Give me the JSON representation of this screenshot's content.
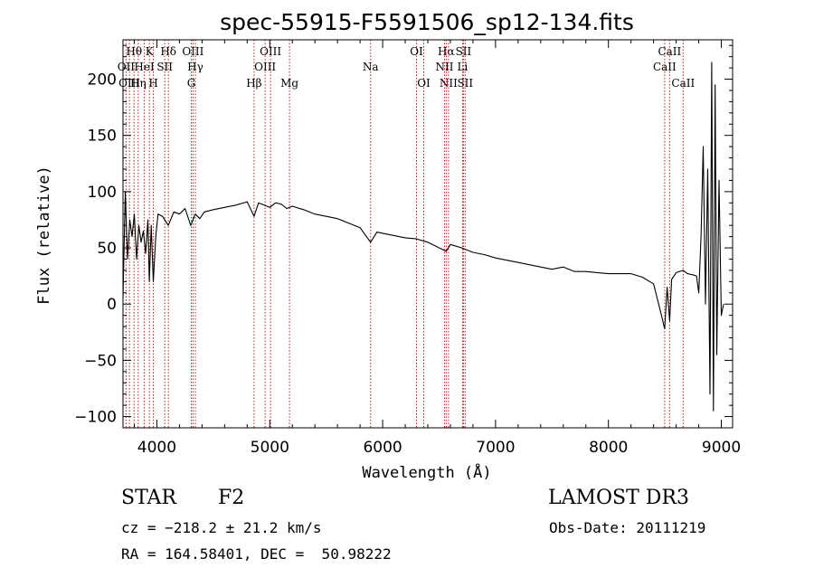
{
  "chart_data": {
    "type": "line",
    "title": "spec-55915-F5591506_sp12-134.fits",
    "xlabel": "Wavelength (Å)",
    "ylabel": "Flux (relative)",
    "xlim": [
      3700,
      9100
    ],
    "ylim": [
      -110,
      235
    ],
    "xticks": [
      4000,
      5000,
      6000,
      7000,
      8000,
      9000
    ],
    "yticks": [
      -100,
      -50,
      0,
      50,
      100,
      150,
      200
    ],
    "ytick_labels": [
      "−100",
      "−50",
      "0",
      "50",
      "100",
      "150",
      "200"
    ],
    "series": [
      {
        "name": "flux",
        "x": [
          3700,
          3720,
          3740,
          3760,
          3780,
          3800,
          3820,
          3840,
          3860,
          3880,
          3900,
          3920,
          3933,
          3950,
          3968,
          3990,
          4010,
          4050,
          4101,
          4150,
          4200,
          4250,
          4300,
          4340,
          4380,
          4420,
          4500,
          4600,
          4700,
          4800,
          4861,
          4900,
          4950,
          5000,
          5050,
          5100,
          5150,
          5200,
          5300,
          5400,
          5500,
          5600,
          5700,
          5800,
          5893,
          5950,
          6000,
          6100,
          6200,
          6300,
          6400,
          6500,
          6563,
          6600,
          6700,
          6800,
          6900,
          7000,
          7100,
          7200,
          7300,
          7400,
          7500,
          7600,
          7700,
          7800,
          7900,
          8000,
          8100,
          8200,
          8300,
          8400,
          8470,
          8498,
          8520,
          8542,
          8560,
          8600,
          8662,
          8700,
          8750,
          8780,
          8800,
          8820,
          8840,
          8860,
          8880,
          8900,
          8915,
          8930,
          8945,
          8960,
          8980,
          9000,
          9020
        ],
        "y": [
          5,
          100,
          40,
          75,
          60,
          80,
          40,
          70,
          55,
          65,
          45,
          75,
          20,
          70,
          20,
          60,
          80,
          78,
          70,
          82,
          80,
          85,
          70,
          80,
          76,
          82,
          84,
          86,
          88,
          91,
          78,
          90,
          88,
          86,
          90,
          89,
          85,
          87,
          84,
          80,
          78,
          76,
          72,
          68,
          55,
          64,
          63,
          61,
          59,
          58,
          55,
          50,
          47,
          53,
          50,
          46,
          44,
          41,
          39,
          37,
          35,
          33,
          31,
          33,
          29,
          29,
          28,
          27,
          27,
          27,
          24,
          18,
          -10,
          -22,
          15,
          -15,
          22,
          28,
          30,
          27,
          26,
          25,
          10,
          60,
          140,
          0,
          120,
          -80,
          215,
          -95,
          195,
          -45,
          110,
          -10,
          0
        ]
      }
    ],
    "lines": [
      {
        "label": "Hθ",
        "x": 3798,
        "row": 1
      },
      {
        "label": "OII",
        "x": 3727,
        "row": 2
      },
      {
        "label": "OIII",
        "x": 3757,
        "row": 3
      },
      {
        "label": "K",
        "x": 3934,
        "row": 1
      },
      {
        "label": "Hη",
        "x": 3835,
        "row": 3
      },
      {
        "label": "HeI",
        "x": 3889,
        "row": 2
      },
      {
        "label": "H",
        "x": 3969,
        "row": 3
      },
      {
        "label": "SII",
        "x": 4070,
        "row": 2
      },
      {
        "label": "Hδ",
        "x": 4102,
        "row": 1
      },
      {
        "label": "OIII",
        "x": 4320,
        "row": 1
      },
      {
        "label": "Hγ",
        "x": 4341,
        "row": 2
      },
      {
        "label": "G",
        "x": 4305,
        "row": 3
      },
      {
        "label": "Hβ",
        "x": 4861,
        "row": 3
      },
      {
        "label": "OIII",
        "x": 4959,
        "row": 2
      },
      {
        "label": "OIII",
        "x": 5007,
        "row": 1
      },
      {
        "label": "Mg",
        "x": 5175,
        "row": 3
      },
      {
        "label": "Na",
        "x": 5893,
        "row": 2
      },
      {
        "label": "OI",
        "x": 6300,
        "row": 1
      },
      {
        "label": "OI",
        "x": 6364,
        "row": 3
      },
      {
        "label": "NII",
        "x": 6548,
        "row": 2
      },
      {
        "label": "Hα",
        "x": 6563,
        "row": 1
      },
      {
        "label": "NII",
        "x": 6583,
        "row": 3
      },
      {
        "label": "SII",
        "x": 6716,
        "row": 1
      },
      {
        "label": "Li",
        "x": 6708,
        "row": 2
      },
      {
        "label": "SII",
        "x": 6731,
        "row": 3
      },
      {
        "label": "CaII",
        "x": 8498,
        "row": 2
      },
      {
        "label": "CaII",
        "x": 8542,
        "row": 1
      },
      {
        "label": "CaII",
        "x": 8662,
        "row": 3
      }
    ]
  },
  "info": {
    "class": "STAR",
    "subclass": "F2",
    "survey": "LAMOST DR3",
    "cz": "cz = −218.2 ± 21.2 km/s",
    "obs_date": "Obs-Date: 20111219",
    "radec": "RA = 164.58401, DEC =  50.98222"
  },
  "colors": {
    "line": "#b22222",
    "axis": "#000000"
  }
}
